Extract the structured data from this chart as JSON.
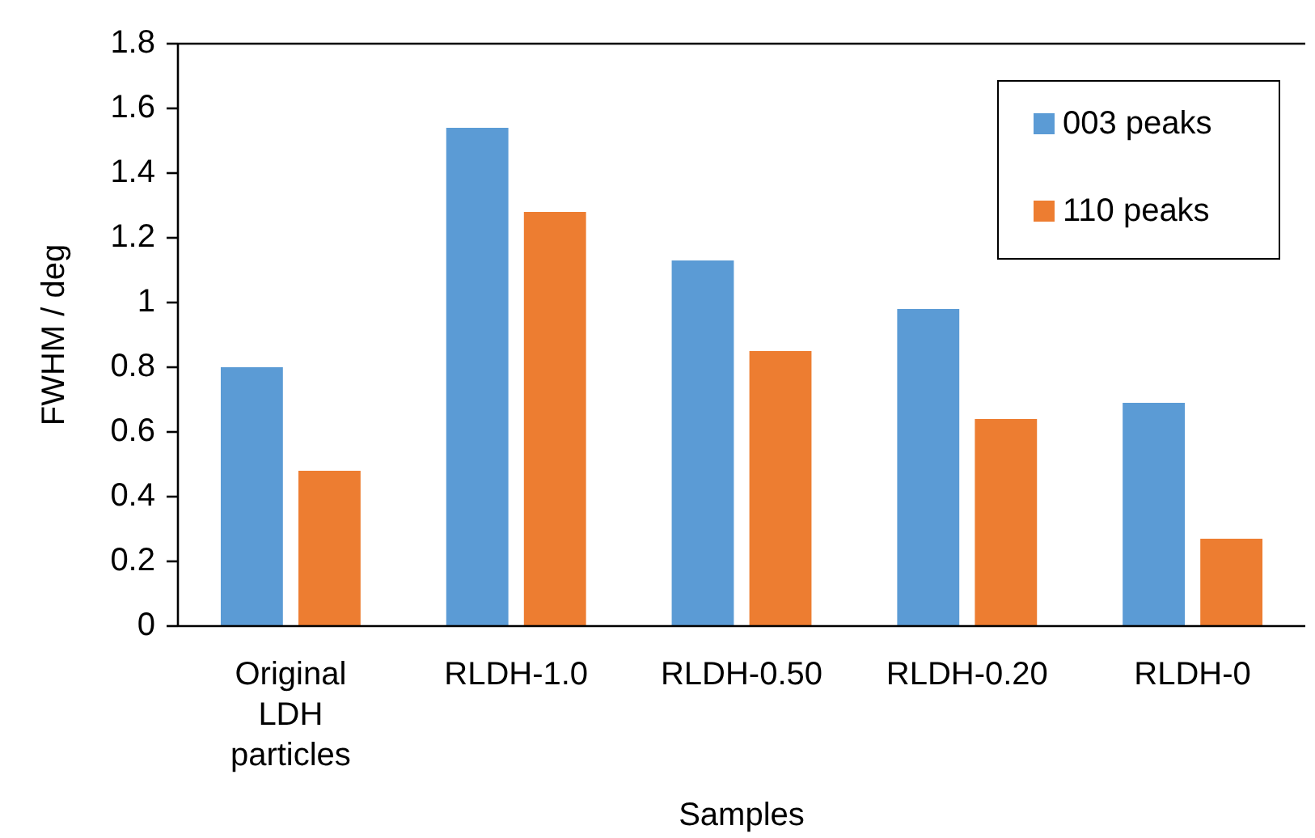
{
  "chart_data": {
    "type": "bar",
    "xlabel": "Samples",
    "ylabel": "FWHM / deg",
    "categories": [
      "Original LDH particles",
      "RLDH-1.0",
      "RLDH-0.50",
      "RLDH-0.20",
      "RLDH-0"
    ],
    "series": [
      {
        "name": "003 peaks",
        "color": "#5b9bd5",
        "values": [
          0.8,
          1.54,
          1.13,
          0.98,
          0.69
        ]
      },
      {
        "name": "110 peaks",
        "color": "#ed7d31",
        "values": [
          0.48,
          1.28,
          0.85,
          0.64,
          0.27
        ]
      }
    ],
    "ylim": [
      0,
      1.8
    ],
    "yticks": [
      0,
      0.2,
      0.4,
      0.6,
      0.8,
      1,
      1.2,
      1.4,
      1.6,
      1.8
    ],
    "grid": false,
    "legend": "top right"
  }
}
